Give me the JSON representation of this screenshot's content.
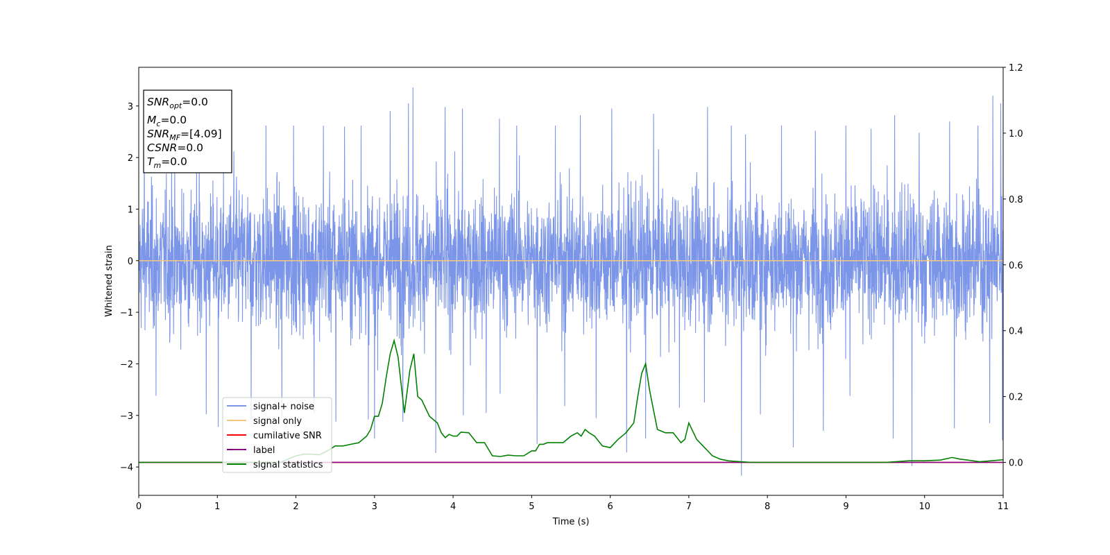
{
  "chart_data": {
    "type": "line",
    "title": "",
    "xlabel": "Time (s)",
    "ylabel": "Whitened strain",
    "xlim": [
      0,
      11
    ],
    "ylim": [
      -4.55,
      3.75
    ],
    "y2lim": [
      -0.1,
      1.2
    ],
    "x_ticks": [
      0,
      1,
      2,
      3,
      4,
      5,
      6,
      7,
      8,
      9,
      10,
      11
    ],
    "y_ticks": [
      -4,
      -3,
      -2,
      -1,
      0,
      1,
      2,
      3
    ],
    "y2_ticks": [
      "0.0",
      "0.2",
      "0.4",
      "0.6",
      "0.8",
      "1.0",
      "1.2"
    ],
    "grid": false,
    "legend_position": "lower-left",
    "colors": {
      "signal_noise": "#7b95e8",
      "signal_only": "#f7c77e",
      "cumulative_snr": "#ff0000",
      "label": "#800080",
      "signal_statistics": "#008000"
    },
    "series": [
      {
        "name": "signal+ noise",
        "axis": "left",
        "description": "dense whitened noise, roughly Gaussian within about ±2.7 with spikes",
        "band_low": -1.8,
        "band_high": 1.55,
        "peaks_high": [
          [
            0.07,
            2.58
          ],
          [
            0.42,
            2.28
          ],
          [
            0.77,
            2.42
          ],
          [
            1.21,
            2.12
          ],
          [
            1.62,
            2.62
          ],
          [
            1.97,
            2.62
          ],
          [
            2.35,
            2.62
          ],
          [
            2.62,
            2.6
          ],
          [
            2.83,
            2.62
          ],
          [
            3.2,
            2.9
          ],
          [
            3.43,
            3.05
          ],
          [
            3.49,
            3.36
          ],
          [
            3.9,
            2.98
          ],
          [
            4.12,
            2.95
          ],
          [
            4.59,
            2.75
          ],
          [
            4.81,
            2.62
          ],
          [
            5.07,
            2.92
          ],
          [
            5.3,
            2.62
          ],
          [
            5.62,
            2.82
          ],
          [
            6.02,
            2.95
          ],
          [
            6.21,
            2.62
          ],
          [
            6.55,
            2.85
          ],
          [
            6.88,
            2.62
          ],
          [
            7.24,
            2.98
          ],
          [
            7.54,
            2.62
          ],
          [
            7.72,
            2.45
          ],
          [
            8.18,
            2.62
          ],
          [
            8.61,
            2.52
          ],
          [
            9.0,
            2.62
          ],
          [
            9.32,
            2.56
          ],
          [
            9.62,
            2.82
          ],
          [
            9.93,
            2.48
          ],
          [
            10.32,
            2.7
          ],
          [
            10.68,
            2.62
          ],
          [
            10.87,
            3.2
          ],
          [
            10.97,
            3.05
          ]
        ],
        "peaks_low": [
          [
            0.22,
            -2.62
          ],
          [
            0.86,
            -2.98
          ],
          [
            1.01,
            -3.22
          ],
          [
            1.43,
            -3.08
          ],
          [
            1.82,
            -3.05
          ],
          [
            2.23,
            -2.95
          ],
          [
            2.51,
            -3.12
          ],
          [
            2.92,
            -3.08
          ],
          [
            3.0,
            -3.45
          ],
          [
            3.36,
            -3.12
          ],
          [
            3.78,
            -3.73
          ],
          [
            4.13,
            -3.0
          ],
          [
            4.42,
            -2.95
          ],
          [
            4.6,
            -2.58
          ],
          [
            5.07,
            -3.55
          ],
          [
            5.42,
            -2.82
          ],
          [
            5.82,
            -3.05
          ],
          [
            6.21,
            -3.72
          ],
          [
            6.45,
            -3.45
          ],
          [
            6.88,
            -2.85
          ],
          [
            7.2,
            -2.75
          ],
          [
            7.67,
            -4.17
          ],
          [
            7.91,
            -2.98
          ],
          [
            8.33,
            -3.62
          ],
          [
            8.71,
            -3.3
          ],
          [
            9.05,
            -2.62
          ],
          [
            9.6,
            -3.45
          ],
          [
            9.84,
            -3.98
          ],
          [
            10.38,
            -3.25
          ],
          [
            10.83,
            -3.15
          ],
          [
            10.99,
            -3.48
          ]
        ]
      },
      {
        "name": "signal only",
        "axis": "left",
        "x": [
          0,
          11
        ],
        "y": [
          0,
          0
        ]
      },
      {
        "name": "cumilative SNR",
        "axis": "right",
        "x": [
          0,
          11
        ],
        "y": [
          0,
          0
        ]
      },
      {
        "name": "label",
        "axis": "right",
        "x": [
          0,
          11
        ],
        "y": [
          0,
          0
        ]
      },
      {
        "name": "signal statistics",
        "axis": "right",
        "x": [
          0,
          0.3,
          0.6,
          1.0,
          1.4,
          1.8,
          2.0,
          2.1,
          2.2,
          2.3,
          2.4,
          2.5,
          2.6,
          2.7,
          2.8,
          2.9,
          2.95,
          3.0,
          3.05,
          3.1,
          3.15,
          3.2,
          3.25,
          3.3,
          3.38,
          3.45,
          3.5,
          3.55,
          3.6,
          3.7,
          3.8,
          3.85,
          3.9,
          3.95,
          4.0,
          4.05,
          4.1,
          4.2,
          4.3,
          4.4,
          4.5,
          4.6,
          4.7,
          4.8,
          4.9,
          5.0,
          5.05,
          5.1,
          5.15,
          5.2,
          5.3,
          5.4,
          5.5,
          5.58,
          5.63,
          5.68,
          5.73,
          5.8,
          5.9,
          6.0,
          6.1,
          6.2,
          6.3,
          6.35,
          6.4,
          6.45,
          6.5,
          6.55,
          6.6,
          6.7,
          6.8,
          6.9,
          6.95,
          7.0,
          7.1,
          7.2,
          7.3,
          7.4,
          7.5,
          7.6,
          7.8,
          8.0,
          8.5,
          9.0,
          9.5,
          9.8,
          10.0,
          10.2,
          10.35,
          10.45,
          10.55,
          10.7,
          10.9,
          11.0
        ],
        "y": [
          0.0,
          0.0,
          0.0,
          0.0,
          0.0,
          0.0,
          0.02,
          0.025,
          0.025,
          0.023,
          0.035,
          0.05,
          0.05,
          0.055,
          0.06,
          0.08,
          0.1,
          0.14,
          0.14,
          0.18,
          0.26,
          0.33,
          0.37,
          0.32,
          0.15,
          0.28,
          0.33,
          0.2,
          0.19,
          0.14,
          0.12,
          0.09,
          0.075,
          0.085,
          0.08,
          0.08,
          0.092,
          0.09,
          0.06,
          0.06,
          0.02,
          0.018,
          0.022,
          0.02,
          0.02,
          0.035,
          0.035,
          0.055,
          0.055,
          0.06,
          0.06,
          0.06,
          0.08,
          0.09,
          0.08,
          0.1,
          0.09,
          0.08,
          0.05,
          0.045,
          0.07,
          0.09,
          0.12,
          0.2,
          0.27,
          0.3,
          0.22,
          0.16,
          0.1,
          0.09,
          0.09,
          0.06,
          0.07,
          0.12,
          0.07,
          0.045,
          0.02,
          0.01,
          0.005,
          0.003,
          0.0,
          0.0,
          0.0,
          0.0,
          0.0,
          0.005,
          0.005,
          0.007,
          0.015,
          0.01,
          0.007,
          0.002,
          0.006,
          0.008
        ]
      }
    ],
    "annotations": [
      {
        "label": "SNR",
        "sub": "opt",
        "value": "=0.0"
      },
      {
        "label": "M",
        "sub": "c",
        "value": "=0.0"
      },
      {
        "label": "SNR",
        "sub": "MF",
        "value": "=[4.09]"
      },
      {
        "label": "CSNR",
        "sub": "",
        "value": "=0.0"
      },
      {
        "label": "T",
        "sub": "m",
        "value": "=0.0"
      }
    ]
  }
}
